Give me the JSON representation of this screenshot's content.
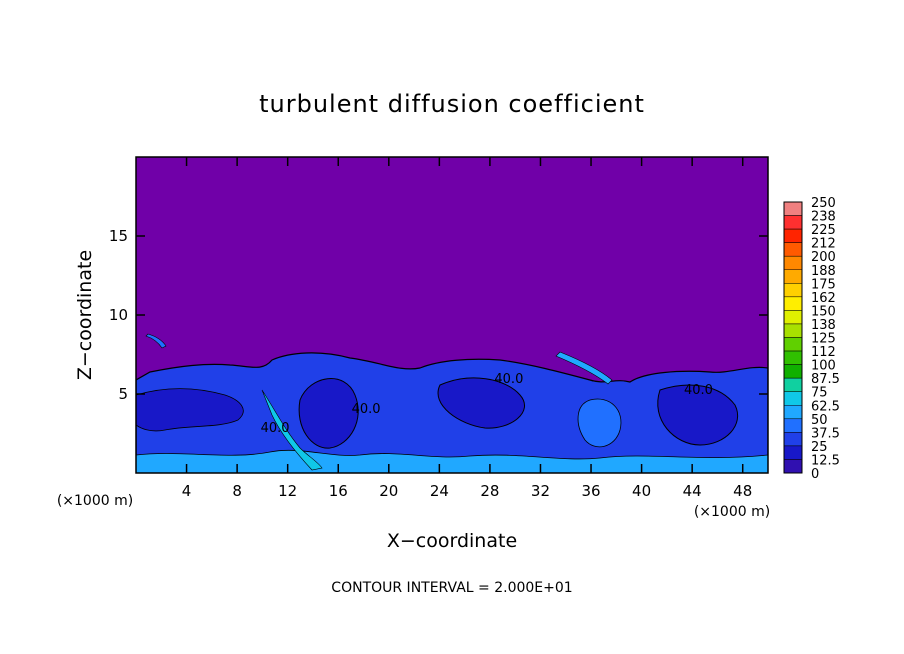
{
  "chart_data": {
    "type": "heatmap",
    "title": "turbulent diffusion coefficient",
    "xlabel": "X−coordinate",
    "ylabel": "Z−coordinate",
    "x_unit_left": "(×1000 m)",
    "x_unit_right": "(×1000 m)",
    "footer": "CONTOUR INTERVAL = 2.000E+01",
    "xlim": [
      0,
      50
    ],
    "ylim": [
      0,
      20
    ],
    "x_ticks": [
      4,
      8,
      12,
      16,
      20,
      24,
      28,
      32,
      36,
      40,
      44,
      48
    ],
    "y_ticks": [
      5,
      10,
      15
    ],
    "grid": false,
    "colorbar": {
      "levels": [
        "250",
        "238",
        "225",
        "212",
        "200",
        "188",
        "175",
        "162",
        "150",
        "138",
        "125",
        "112",
        "100",
        "87.5",
        "75",
        "62.5",
        "50",
        "37.5",
        "25",
        "12.5",
        "0"
      ],
      "colors": [
        "#f08080",
        "#ff3030",
        "#ff2400",
        "#ff5a00",
        "#ff8800",
        "#ffaa00",
        "#ffd000",
        "#ffee00",
        "#e0f000",
        "#a8e000",
        "#60d000",
        "#30c000",
        "#10b000",
        "#10d0a0",
        "#10c8e8",
        "#20a8ff",
        "#2070ff",
        "#2040e8",
        "#1818c8",
        "#3010b0",
        "#7000a8"
      ]
    },
    "contour_labels": [
      {
        "text": "40.0",
        "x": 29.5,
        "z": 5.7
      },
      {
        "text": "40.0",
        "x": 18.2,
        "z": 3.8
      },
      {
        "text": "40.0",
        "x": 11.0,
        "z": 2.6
      },
      {
        "text": "40.0",
        "x": 44.5,
        "z": 5.0
      }
    ],
    "field_note": "background value 0 (purple) above z≈7 km; turbulent layer with values 12.5–62.5 between z=0 and z≈7 km"
  }
}
